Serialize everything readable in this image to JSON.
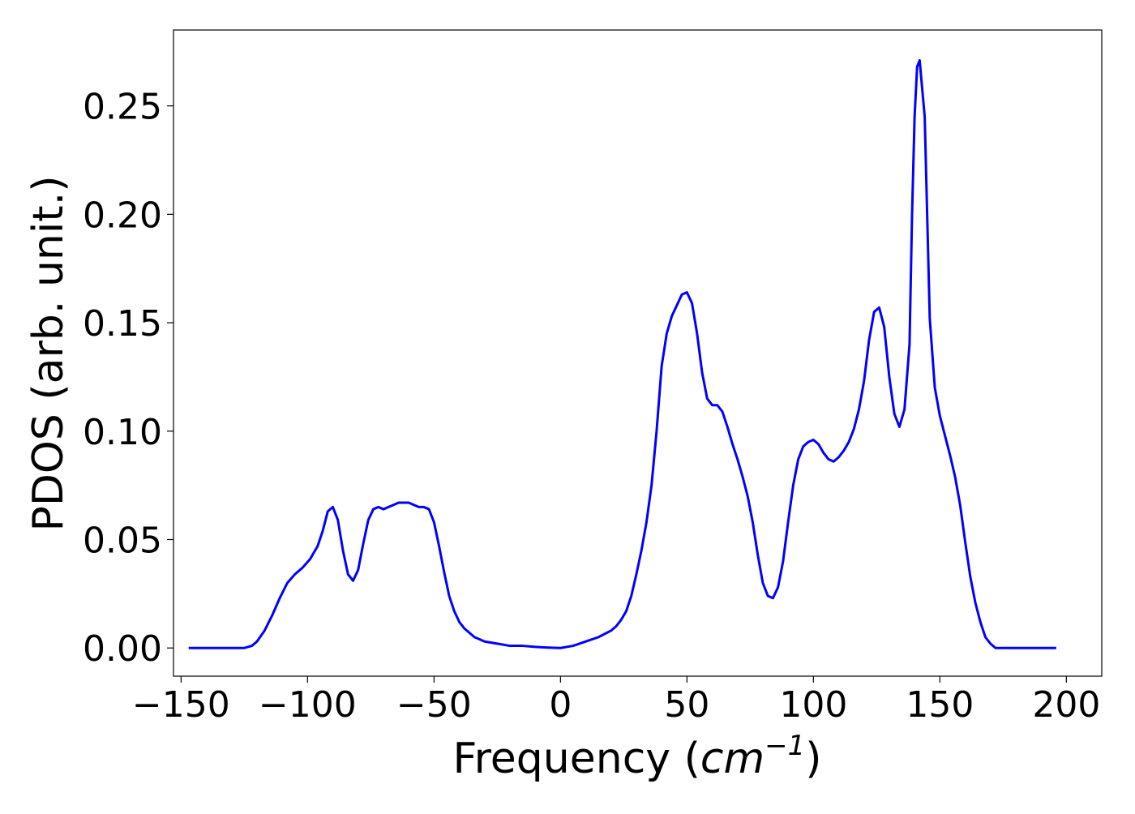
{
  "chart_data": {
    "type": "line",
    "title": "",
    "xlabel": "Frequency ($cm^{-1}$)",
    "xlabel_main": "Frequency (",
    "xlabel_unit_base": "cm",
    "xlabel_unit_exp": "−1",
    "xlabel_close": ")",
    "ylabel": "PDOS (arb. unit.)",
    "xlim": [
      -153,
      214
    ],
    "ylim": [
      -0.013,
      0.285
    ],
    "grid": false,
    "legend": "none",
    "line_color": "#0000ff",
    "frame_color": "#000000",
    "x_ticks": [
      -150,
      -100,
      -50,
      0,
      50,
      100,
      150,
      200
    ],
    "x_tick_labels": [
      "−150",
      "−100",
      "−50",
      "0",
      "50",
      "100",
      "150",
      "200"
    ],
    "y_ticks": [
      0.0,
      0.05,
      0.1,
      0.15,
      0.2,
      0.25
    ],
    "y_tick_labels": [
      "0.00",
      "0.05",
      "0.10",
      "0.15",
      "0.20",
      "0.25"
    ],
    "series": [
      {
        "x": [
          -147,
          -140,
          -130,
          -125,
          -122,
          -120,
          -117,
          -114,
          -111,
          -108,
          -105,
          -102,
          -99,
          -96,
          -94,
          -92,
          -90,
          -88,
          -86,
          -84,
          -82,
          -80,
          -78,
          -76,
          -74,
          -72,
          -70,
          -68,
          -66,
          -64,
          -62,
          -60,
          -58,
          -56,
          -54,
          -52,
          -50,
          -48,
          -46,
          -44,
          -42,
          -40,
          -38,
          -36,
          -34,
          -32,
          -30,
          -25,
          -20,
          -15,
          -10,
          -5,
          0,
          5,
          10,
          15,
          20,
          22,
          24,
          26,
          28,
          30,
          32,
          34,
          36,
          38,
          40,
          42,
          44,
          46,
          48,
          50,
          52,
          54,
          56,
          58,
          60,
          62,
          64,
          66,
          68,
          70,
          72,
          74,
          76,
          78,
          80,
          82,
          84,
          86,
          88,
          90,
          92,
          94,
          96,
          98,
          100,
          102,
          104,
          106,
          108,
          110,
          112,
          114,
          116,
          118,
          120,
          122,
          124,
          126,
          128,
          130,
          132,
          134,
          136,
          138,
          139,
          140,
          141,
          142,
          144,
          146,
          148,
          150,
          152,
          154,
          156,
          158,
          160,
          162,
          164,
          166,
          168,
          170,
          172,
          175,
          180,
          190,
          196
        ],
        "y": [
          0.0,
          0.0,
          0.0,
          0.0,
          0.001,
          0.003,
          0.008,
          0.015,
          0.023,
          0.03,
          0.034,
          0.037,
          0.041,
          0.047,
          0.054,
          0.063,
          0.065,
          0.059,
          0.045,
          0.034,
          0.031,
          0.036,
          0.048,
          0.059,
          0.064,
          0.065,
          0.064,
          0.065,
          0.066,
          0.067,
          0.067,
          0.067,
          0.066,
          0.065,
          0.065,
          0.064,
          0.058,
          0.047,
          0.035,
          0.024,
          0.017,
          0.012,
          0.009,
          0.007,
          0.005,
          0.004,
          0.003,
          0.002,
          0.001,
          0.001,
          0.0005,
          0.0002,
          0.0,
          0.001,
          0.003,
          0.005,
          0.008,
          0.01,
          0.013,
          0.017,
          0.024,
          0.034,
          0.045,
          0.058,
          0.075,
          0.1,
          0.13,
          0.145,
          0.153,
          0.158,
          0.163,
          0.164,
          0.159,
          0.145,
          0.127,
          0.115,
          0.112,
          0.112,
          0.109,
          0.102,
          0.094,
          0.087,
          0.079,
          0.07,
          0.058,
          0.043,
          0.03,
          0.024,
          0.023,
          0.028,
          0.04,
          0.058,
          0.075,
          0.087,
          0.093,
          0.095,
          0.096,
          0.094,
          0.09,
          0.087,
          0.086,
          0.088,
          0.091,
          0.095,
          0.101,
          0.11,
          0.123,
          0.142,
          0.155,
          0.157,
          0.148,
          0.125,
          0.108,
          0.102,
          0.11,
          0.14,
          0.2,
          0.245,
          0.268,
          0.271,
          0.245,
          0.152,
          0.12,
          0.107,
          0.098,
          0.089,
          0.079,
          0.066,
          0.049,
          0.033,
          0.021,
          0.012,
          0.005,
          0.002,
          0.0,
          0.0,
          0.0,
          0.0,
          0.0
        ]
      }
    ]
  }
}
